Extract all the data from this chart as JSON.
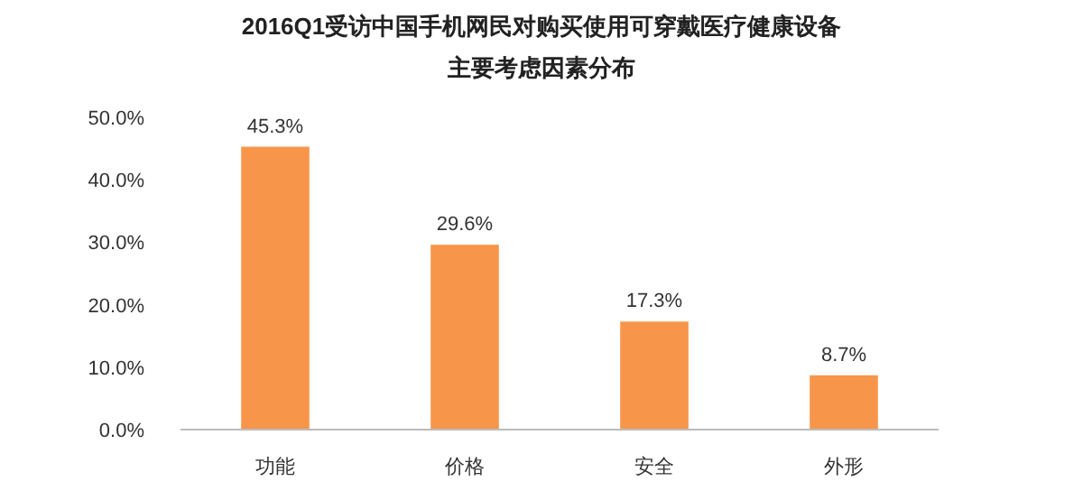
{
  "chart_data": {
    "type": "bar",
    "title": "2016Q1受访中国手机网民对购买使用可穿戴医疗健康设备",
    "subtitle": "主要考虑因素分布",
    "categories": [
      "功能",
      "价格",
      "安全",
      "外形"
    ],
    "values": [
      45.3,
      29.6,
      17.3,
      8.7
    ],
    "value_labels": [
      "45.3%",
      "29.6%",
      "17.3%",
      "8.7%"
    ],
    "color": "#f7964a",
    "ylim": [
      0,
      50
    ],
    "yticks": [
      {
        "value": 0,
        "label": "0.0%"
      },
      {
        "value": 10,
        "label": "10.0%"
      },
      {
        "value": 20,
        "label": "20.0%"
      },
      {
        "value": 30,
        "label": "30.0%"
      },
      {
        "value": 40,
        "label": "40.0%"
      },
      {
        "value": 50,
        "label": "50.0%"
      }
    ],
    "grid": false
  }
}
